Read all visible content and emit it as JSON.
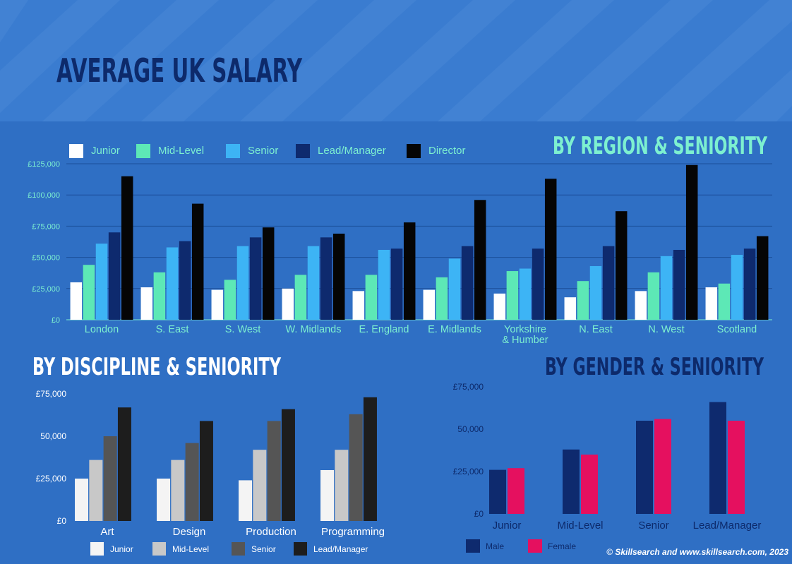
{
  "page": {
    "title": "AVERAGE UK SALARY",
    "copyright": "© Skillsearch and www.skillsearch.com, 2023",
    "colors": {
      "background": "#2f6fc4",
      "banner": "#3a7cd0",
      "stripe": "#4a88d6",
      "title_dark": "#0d2a6b",
      "title_light": "#7df0d0"
    }
  },
  "chart_data": [
    {
      "type": "bar",
      "title": "BY REGION & SENIORITY",
      "categories": [
        "London",
        "S. East",
        "S. West",
        "W. Midlands",
        "E. England",
        "E. Midlands",
        "Yorkshire & Humber",
        "N. East",
        "N. West",
        "Scotland"
      ],
      "ylim": [
        0,
        125000
      ],
      "yticks": [
        "£0",
        "£25,000",
        "£50,000",
        "£75,000",
        "£100,000",
        "£125,000"
      ],
      "grid": true,
      "legend": "top-left",
      "series": [
        {
          "name": "Junior",
          "color": "#ffffff",
          "values": [
            30000,
            26000,
            24000,
            25000,
            23000,
            24000,
            21000,
            18000,
            23000,
            26000
          ]
        },
        {
          "name": "Mid-Level",
          "color": "#5de8b6",
          "values": [
            44000,
            38000,
            32000,
            36000,
            36000,
            34000,
            39000,
            31000,
            38000,
            29000
          ]
        },
        {
          "name": "Senior",
          "color": "#3db4f5",
          "values": [
            61000,
            58000,
            59000,
            59000,
            56000,
            49000,
            41000,
            43000,
            51000,
            52000
          ]
        },
        {
          "name": "Lead/Manager",
          "color": "#0e2a6e",
          "values": [
            70000,
            63000,
            66000,
            66000,
            57000,
            59000,
            57000,
            59000,
            56000,
            57000
          ]
        },
        {
          "name": "Director",
          "color": "#050505",
          "values": [
            115000,
            93000,
            74000,
            69000,
            78000,
            96000,
            113000,
            87000,
            124000,
            67000
          ]
        }
      ]
    },
    {
      "type": "bar",
      "title": "BY DISCIPLINE & SENIORITY",
      "categories": [
        "Art",
        "Design",
        "Production",
        "Programming"
      ],
      "ylim": [
        0,
        75000
      ],
      "yticks": [
        "£0",
        "£25,000",
        "50,000",
        "£75,000"
      ],
      "grid": false,
      "legend": "bottom",
      "series": [
        {
          "name": "Junior",
          "color": "#f4f4f4",
          "values": [
            25000,
            25000,
            24000,
            30000
          ]
        },
        {
          "name": "Mid-Level",
          "color": "#c8c8c8",
          "values": [
            36000,
            36000,
            42000,
            42000
          ]
        },
        {
          "name": "Senior",
          "color": "#555555",
          "values": [
            50000,
            46000,
            59000,
            63000
          ]
        },
        {
          "name": "Lead/Manager",
          "color": "#1d1d1d",
          "values": [
            67000,
            59000,
            66000,
            73000
          ]
        }
      ]
    },
    {
      "type": "bar",
      "title": "BY GENDER & SENIORITY",
      "categories": [
        "Junior",
        "Mid-Level",
        "Senior",
        "Lead/Manager"
      ],
      "ylim": [
        0,
        75000
      ],
      "yticks": [
        "£0",
        "£25,000",
        "50,000",
        "£75,000"
      ],
      "grid": false,
      "legend": "bottom-left",
      "series": [
        {
          "name": "Male",
          "color": "#0e2a6e",
          "values": [
            26000,
            38000,
            55000,
            66000
          ]
        },
        {
          "name": "Female",
          "color": "#e5105f",
          "values": [
            27000,
            35000,
            56000,
            55000
          ]
        }
      ]
    }
  ]
}
